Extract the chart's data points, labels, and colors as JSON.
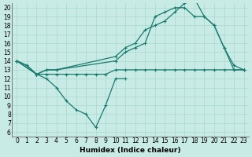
{
  "xlabel": "Humidex (Indice chaleur)",
  "xlim": [
    -0.5,
    23.5
  ],
  "ylim": [
    5.5,
    20.5
  ],
  "xticks": [
    0,
    1,
    2,
    3,
    4,
    5,
    6,
    7,
    8,
    9,
    10,
    11,
    12,
    13,
    14,
    15,
    16,
    17,
    18,
    19,
    20,
    21,
    22,
    23
  ],
  "yticks": [
    6,
    7,
    8,
    9,
    10,
    11,
    12,
    13,
    14,
    15,
    16,
    17,
    18,
    19,
    20
  ],
  "bg_color": "#c8ebe5",
  "grid_color": "#a8d8d0",
  "line_color": "#1a7a6e",
  "line1_x": [
    0,
    1,
    2,
    3,
    4,
    5,
    6,
    7,
    8,
    9,
    10,
    11
  ],
  "line1_y": [
    14,
    13.5,
    12.5,
    12,
    11,
    9.5,
    8.5,
    8,
    6.5,
    9,
    12,
    12
  ],
  "line2_x": [
    0,
    1,
    2,
    3,
    4,
    5,
    6,
    7,
    8,
    9,
    10,
    11,
    12,
    13,
    14,
    15,
    16,
    17,
    18,
    19,
    20,
    21,
    22,
    23
  ],
  "line2_y": [
    14,
    13.5,
    12.5,
    12.5,
    12.5,
    12.5,
    12.5,
    12.5,
    12.5,
    12.5,
    13,
    13,
    13,
    13,
    13,
    13,
    13,
    13,
    13,
    13,
    13,
    13,
    13,
    13
  ],
  "line3_x": [
    0,
    2,
    3,
    4,
    10,
    11,
    12,
    13,
    14,
    15,
    16,
    17,
    18,
    19,
    20,
    21,
    22,
    23
  ],
  "line3_y": [
    14,
    12.5,
    13,
    13,
    14,
    15,
    15.5,
    16,
    19,
    19.5,
    20,
    20,
    19,
    19,
    18,
    15.5,
    13,
    13
  ],
  "line4_x": [
    0,
    2,
    3,
    4,
    10,
    11,
    12,
    13,
    14,
    15,
    16,
    17,
    18,
    19,
    20,
    21,
    22,
    23
  ],
  "line4_y": [
    14,
    12.5,
    13,
    13,
    14.5,
    15.5,
    16,
    17.5,
    18,
    18.5,
    19.5,
    20.5,
    21,
    19,
    18,
    15.5,
    13.5,
    13
  ]
}
